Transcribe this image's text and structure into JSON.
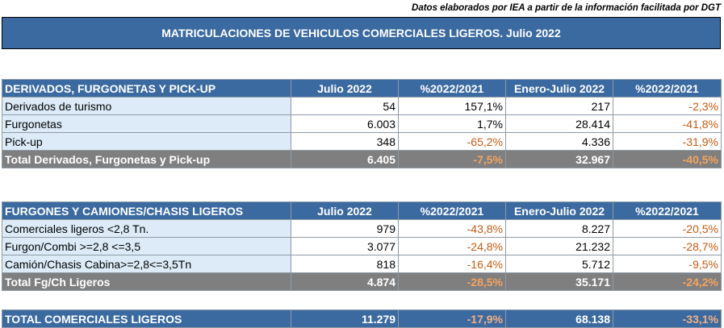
{
  "source_note": "Datos elaborados por IEA a partir de la información facilitada por DGT",
  "title": "MATRICULACIONES DE VEHICULOS COMERCIALES LIGEROS. Julio 2022",
  "columns": [
    "Julio 2022",
    "%2022/2021",
    "Enero-Julio 2022",
    "%2022/2021"
  ],
  "section1": {
    "header": "DERIVADOS, FURGONETAS Y PICK-UP",
    "rows": [
      {
        "label": "Derivados de turismo",
        "c1": "54",
        "c2": "157,1%",
        "c3": "217",
        "c4": "-2,3%"
      },
      {
        "label": "Furgonetas",
        "c1": "6.003",
        "c2": "1,7%",
        "c3": "28.414",
        "c4": "-41,8%"
      },
      {
        "label": "Pick-up",
        "c1": "348",
        "c2": "-65,2%",
        "c3": "4.336",
        "c4": "-31,9%"
      }
    ],
    "total": {
      "label": "Total Derivados, Furgonetas y Pick-up",
      "c1": "6.405",
      "c2": "-7,5%",
      "c3": "32.967",
      "c4": "-40,5%"
    }
  },
  "section2": {
    "header": "FURGONES Y CAMIONES/CHASIS LIGEROS",
    "rows": [
      {
        "label": "Comerciales ligeros <2,8 Tn.",
        "c1": "979",
        "c2": "-43,8%",
        "c3": "8.227",
        "c4": "-20,5%"
      },
      {
        "label": "Furgon/Combi >=2,8 <=3,5",
        "c1": "3.077",
        "c2": "-24,8%",
        "c3": "21.232",
        "c4": "-28,7%"
      },
      {
        "label": "Camión/Chasis Cabina>=2,8<=3,5Tn",
        "c1": "818",
        "c2": "-16,4%",
        "c3": "5.712",
        "c4": "-9,5%"
      }
    ],
    "total": {
      "label": "Total Fg/Ch Ligeros",
      "c1": "4.874",
      "c2": "-28,5%",
      "c3": "35.171",
      "c4": "-24,2%"
    }
  },
  "grand_total": {
    "label": "TOTAL COMERCIALES LIGEROS",
    "c1": "11.279",
    "c2": "-17,9%",
    "c3": "68.138",
    "c4": "-33,1%"
  }
}
